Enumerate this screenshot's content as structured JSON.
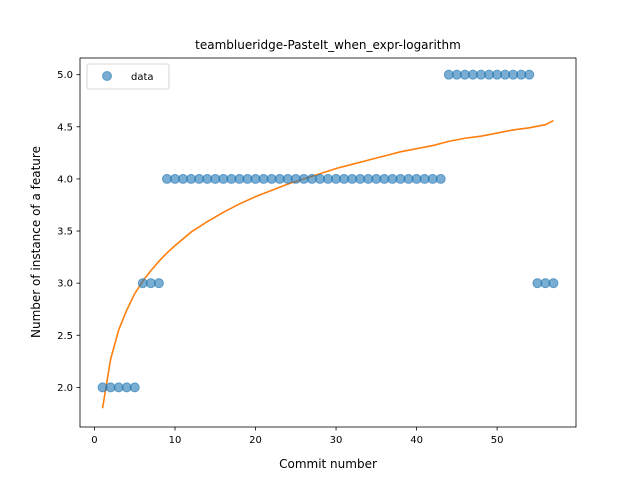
{
  "chart_data": {
    "type": "scatter",
    "title": "teamblueridge-PasteIt_when_expr-logarithm",
    "xlabel": "Commit number",
    "ylabel": "Number of instance of a feature",
    "xlim": [
      -1.8,
      59.8
    ],
    "ylim": [
      1.62,
      5.16
    ],
    "xticks": [
      0,
      10,
      20,
      30,
      40,
      50
    ],
    "yticks": [
      2.0,
      2.5,
      3.0,
      3.5,
      4.0,
      4.5,
      5.0
    ],
    "legend": {
      "placement": "upper-left",
      "entries": [
        "data"
      ]
    },
    "colors": {
      "points": "#1f77b4",
      "fit": "#ff7f0e"
    },
    "series": [
      {
        "name": "data",
        "kind": "scatter",
        "points": [
          [
            1,
            2
          ],
          [
            2,
            2
          ],
          [
            3,
            2
          ],
          [
            4,
            2
          ],
          [
            5,
            2
          ],
          [
            6,
            3
          ],
          [
            7,
            3
          ],
          [
            8,
            3
          ],
          [
            9,
            4
          ],
          [
            10,
            4
          ],
          [
            11,
            4
          ],
          [
            12,
            4
          ],
          [
            13,
            4
          ],
          [
            14,
            4
          ],
          [
            15,
            4
          ],
          [
            16,
            4
          ],
          [
            17,
            4
          ],
          [
            18,
            4
          ],
          [
            19,
            4
          ],
          [
            20,
            4
          ],
          [
            21,
            4
          ],
          [
            22,
            4
          ],
          [
            23,
            4
          ],
          [
            24,
            4
          ],
          [
            25,
            4
          ],
          [
            26,
            4
          ],
          [
            27,
            4
          ],
          [
            28,
            4
          ],
          [
            29,
            4
          ],
          [
            30,
            4
          ],
          [
            31,
            4
          ],
          [
            32,
            4
          ],
          [
            33,
            4
          ],
          [
            34,
            4
          ],
          [
            35,
            4
          ],
          [
            36,
            4
          ],
          [
            37,
            4
          ],
          [
            38,
            4
          ],
          [
            39,
            4
          ],
          [
            40,
            4
          ],
          [
            41,
            4
          ],
          [
            42,
            4
          ],
          [
            43,
            4
          ],
          [
            44,
            5
          ],
          [
            45,
            5
          ],
          [
            46,
            5
          ],
          [
            47,
            5
          ],
          [
            48,
            5
          ],
          [
            49,
            5
          ],
          [
            50,
            5
          ],
          [
            51,
            5
          ],
          [
            52,
            5
          ],
          [
            53,
            5
          ],
          [
            54,
            5
          ],
          [
            55,
            3
          ],
          [
            56,
            3
          ],
          [
            57,
            3
          ]
        ]
      },
      {
        "kind": "line",
        "x": [
          1,
          2,
          3,
          4,
          5,
          6,
          7,
          8,
          9,
          10,
          12,
          14,
          16,
          18,
          20,
          22,
          24,
          26,
          28,
          30,
          32,
          34,
          36,
          38,
          40,
          42,
          44,
          46,
          48,
          50,
          52,
          54,
          56,
          57
        ],
        "y": [
          1.8,
          2.27,
          2.55,
          2.74,
          2.9,
          3.02,
          3.12,
          3.21,
          3.29,
          3.36,
          3.49,
          3.59,
          3.68,
          3.76,
          3.83,
          3.89,
          3.95,
          4.0,
          4.05,
          4.1,
          4.14,
          4.18,
          4.22,
          4.26,
          4.29,
          4.32,
          4.36,
          4.39,
          4.41,
          4.44,
          4.47,
          4.49,
          4.52,
          4.56
        ]
      }
    ]
  }
}
